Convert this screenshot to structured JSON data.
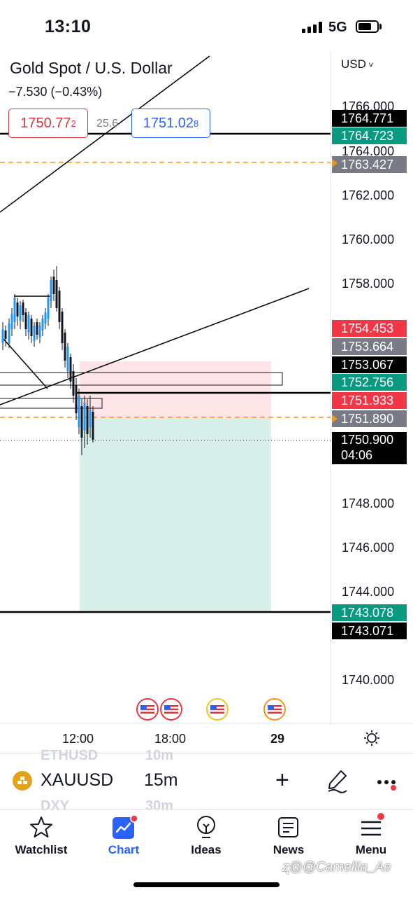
{
  "status_bar": {
    "time": "13:10",
    "network": "5G"
  },
  "chart": {
    "title": "Gold Spot / U.S. Dollar",
    "change": "−7.530 (−0.43%)",
    "sell_price": "1750.77",
    "sell_price_sup": "2",
    "spread": "25.6",
    "buy_price": "1751.02",
    "buy_price_sup": "8",
    "currency": "USD",
    "price_axis": [
      "1766.000",
      "1764.000",
      "1762.000",
      "1760.000",
      "1758.000",
      "1748.000",
      "1746.000",
      "1744.000",
      "1740.000"
    ],
    "price_tags": [
      {
        "value": "1764.771",
        "color": "#000000"
      },
      {
        "value": "1764.723",
        "color": "#089981"
      },
      {
        "value": "1763.427",
        "color": "#787b86"
      },
      {
        "value": "1754.453",
        "color": "#f23645"
      },
      {
        "value": "1753.664",
        "color": "#787b86"
      },
      {
        "value": "1753.067",
        "color": "#000000"
      },
      {
        "value": "1752.756",
        "color": "#089981"
      },
      {
        "value": "1751.933",
        "color": "#f23645"
      },
      {
        "value": "1751.890",
        "color": "#787b86"
      },
      {
        "value": "1750.900",
        "color": "#000000"
      },
      {
        "value": "1743.078",
        "color": "#089981"
      },
      {
        "value": "1743.071",
        "color": "#000000"
      }
    ],
    "countdown": "04:06",
    "time_axis": [
      "12:00",
      "18:00",
      "29"
    ]
  },
  "symbol_bar": {
    "ghost_above_symbol": "ETHUSD",
    "ghost_above_tf": "10m",
    "symbol": "XAUUSD",
    "timeframe": "15m",
    "ghost_below_symbol": "DXY",
    "ghost_below_tf": "30m"
  },
  "tabs": [
    {
      "label": "Watchlist",
      "icon": "star-icon",
      "active": false
    },
    {
      "label": "Chart",
      "icon": "chart-icon",
      "active": true
    },
    {
      "label": "Ideas",
      "icon": "lightbulb-icon",
      "active": false
    },
    {
      "label": "News",
      "icon": "news-icon",
      "active": false
    },
    {
      "label": "Menu",
      "icon": "menu-icon",
      "active": false
    }
  ],
  "watermark": "ʐ@@Camellia_Ae",
  "colors": {
    "accent": "#2962ff",
    "up": "#089981",
    "down": "#f23645"
  }
}
